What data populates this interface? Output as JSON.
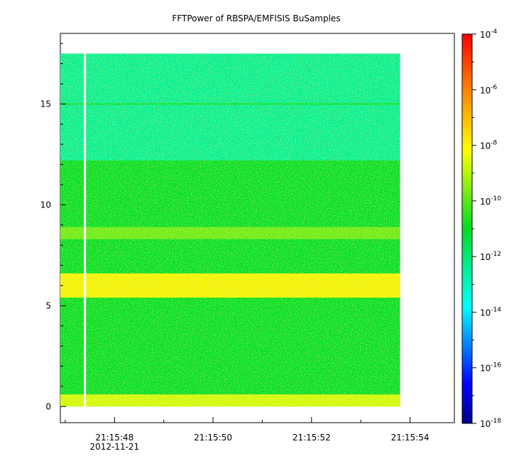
{
  "chart_data": {
    "type": "heatmap",
    "title": "FFTPower of RBSPA/EMFISIS  BuSamples",
    "xlabel": "",
    "ylabel": "",
    "x_axis": {
      "type": "time",
      "ticks": [
        "21:15:48",
        "21:15:50",
        "21:15:52",
        "21:15:54"
      ],
      "date_label": "2012-11-21",
      "range": [
        "21:15:46.9",
        "21:15:54.9"
      ],
      "data_range": [
        "21:15:46.9",
        "21:15:53.8"
      ]
    },
    "y_axis": {
      "ticks": [
        0,
        5,
        10,
        15
      ],
      "range": [
        -0.8,
        18.5
      ],
      "data_range": [
        0,
        17.5
      ]
    },
    "colorbar": {
      "scale": "log",
      "colormap": "rainbow",
      "range": [
        1e-18,
        0.0001
      ],
      "tick_base": "10",
      "tick_exponents": [
        "-4",
        "-6",
        "-8",
        "-10",
        "-12",
        "-14",
        "-16",
        "-18"
      ]
    },
    "features": [
      {
        "description": "background",
        "freq_range": [
          0,
          17.5
        ],
        "log10_power": -11
      },
      {
        "description": "upper band",
        "freq_range": [
          12.2,
          17.5
        ],
        "log10_power": -12.5
      },
      {
        "description": "line",
        "freq": 15.0,
        "log10_power": -11.3
      },
      {
        "description": "band",
        "freq_range": [
          5.4,
          6.6
        ],
        "log10_power": -8
      },
      {
        "description": "band",
        "freq_range": [
          8.3,
          8.9
        ],
        "log10_power": -9.8
      },
      {
        "description": "band",
        "freq_range": [
          0,
          0.6
        ],
        "log10_power": -8.6
      }
    ],
    "data_gap": {
      "time": "21:15:47.4"
    }
  }
}
